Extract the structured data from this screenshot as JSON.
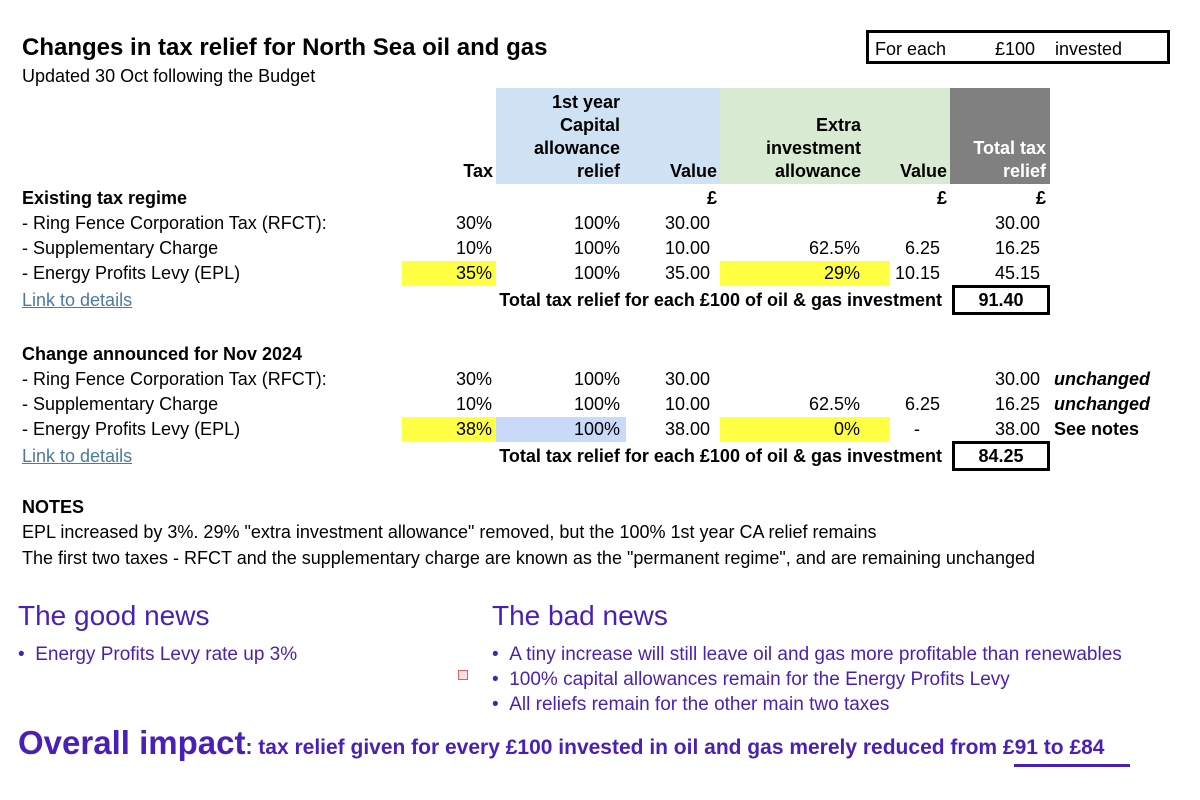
{
  "title": "Changes in tax relief for North Sea oil and gas",
  "subtitle": "Updated 30 Oct following the Budget",
  "invest_box": {
    "prefix": "For each",
    "amount": "£100",
    "suffix": "invested"
  },
  "headers": {
    "tax": "Tax",
    "capital_line1": "1st year",
    "capital_line2": "Capital",
    "capital_line3": "allowance",
    "capital_line4": "relief",
    "value1": "Value",
    "extra_line1": "Extra",
    "extra_line2": "investment",
    "extra_line3": "allowance",
    "value2": "Value",
    "total_line1": "Total tax",
    "total_line2": "relief"
  },
  "colors": {
    "capital_header": "#cfe2f3",
    "extra_header": "#d9ead3",
    "total_header": "#808080",
    "highlight_yellow": "#ffff44",
    "highlight_blue": "#c9daf8",
    "purple": "#4a1fb8"
  },
  "existing": {
    "heading": "Existing tax regime",
    "currency_value1": "£",
    "currency_value2": "£",
    "currency_total": "£",
    "rows": [
      {
        "label": "- Ring Fence Corporation Tax (RFCT):",
        "tax": "30%",
        "capital": "100%",
        "value1": "30.00",
        "extra": "",
        "value2": "",
        "total": "30.00"
      },
      {
        "label": "- Supplementary Charge",
        "tax": "10%",
        "capital": "100%",
        "value1": "10.00",
        "extra": "62.5%",
        "value2": "6.25",
        "total": "16.25"
      },
      {
        "label": "- Energy Profits Levy (EPL)",
        "tax": "35%",
        "capital": "100%",
        "value1": "35.00",
        "extra": "29%",
        "value2": "10.15",
        "total": "45.15"
      }
    ],
    "link": "Link to details",
    "total_label": "Total tax relief for each £100 of oil & gas investment",
    "total_value": "91.40"
  },
  "change": {
    "heading": "Change announced for Nov 2024",
    "rows": [
      {
        "label": "- Ring Fence Corporation Tax (RFCT):",
        "tax": "30%",
        "capital": "100%",
        "value1": "30.00",
        "extra": "",
        "value2": "",
        "total": "30.00",
        "note": "unchanged"
      },
      {
        "label": "- Supplementary Charge",
        "tax": "10%",
        "capital": "100%",
        "value1": "10.00",
        "extra": "62.5%",
        "value2": "6.25",
        "total": "16.25",
        "note": "unchanged"
      },
      {
        "label": "- Energy Profits Levy (EPL)",
        "tax": "38%",
        "capital": "100%",
        "value1": "38.00",
        "extra": "0%",
        "value2": "-",
        "total": "38.00",
        "note": "See notes"
      }
    ],
    "link": "Link to details",
    "total_label": "Total tax relief for each £100 of oil & gas investment",
    "total_value": "84.25"
  },
  "notes": {
    "heading": "NOTES",
    "line1": "EPL increased by 3%. 29% \"extra investment allowance\" removed, but the 100% 1st year CA relief remains",
    "line2": "The first two taxes - RFCT and the supplementary charge are known as the \"permanent regime\", and are remaining unchanged"
  },
  "good_news": {
    "heading": "The good news",
    "items": [
      "Energy Profits Levy rate up 3%"
    ]
  },
  "bad_news": {
    "heading": "The bad news",
    "items": [
      "A tiny increase will still leave oil and gas more profitable than renewables",
      "100% capital allowances remain for the Energy Profits Levy",
      "All reliefs remain for the other main two taxes"
    ]
  },
  "overall": {
    "lead": "Overall impact",
    "text": ": tax relief given for every £100 invested in oil and gas merely reduced from ",
    "emphasis": "£91 to £84"
  }
}
